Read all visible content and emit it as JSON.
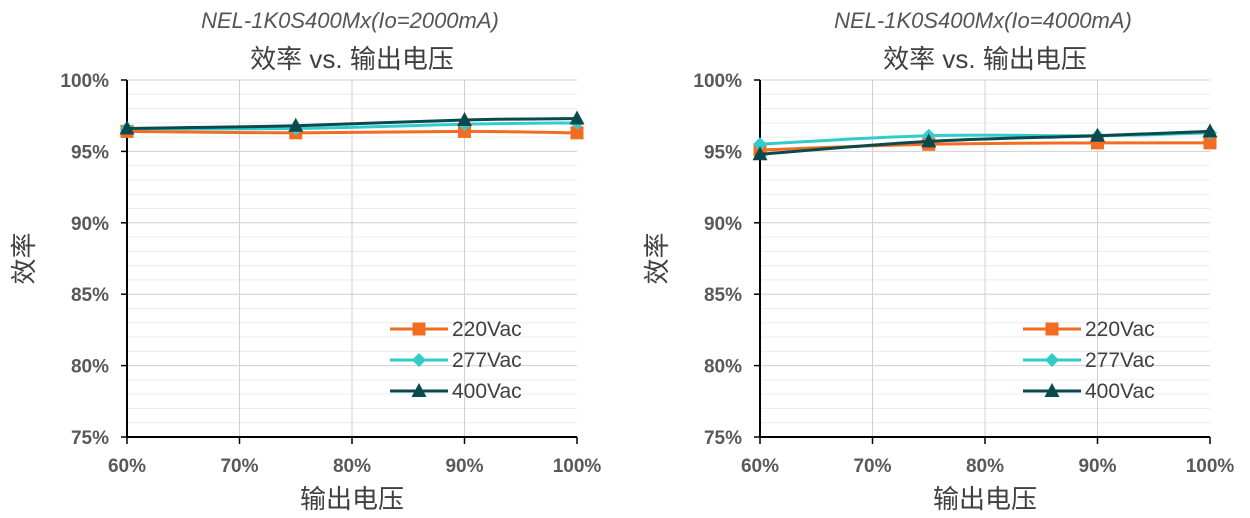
{
  "chart_data": [
    {
      "type": "line",
      "title": "NEL-1K0S400Mx(Io=2000mA)",
      "subtitle": "效率 vs. 输出电压",
      "xlabel": "输出电压",
      "ylabel": "效率",
      "x": [
        60,
        75,
        90,
        100
      ],
      "xticks": [
        "60%",
        "70%",
        "80%",
        "90%",
        "100%"
      ],
      "xlim": [
        60,
        100
      ],
      "yticks": [
        "75%",
        "80%",
        "85%",
        "90%",
        "95%",
        "100%"
      ],
      "ylim": [
        75,
        100
      ],
      "grid": true,
      "legend_position": "bottom-right",
      "series": [
        {
          "name": "220Vac",
          "values": [
            96.4,
            96.3,
            96.4,
            96.3
          ],
          "color": "#f26d21",
          "marker": "square"
        },
        {
          "name": "277Vac",
          "values": [
            96.6,
            96.6,
            96.9,
            97.0
          ],
          "color": "#33cccc",
          "marker": "diamond"
        },
        {
          "name": "400Vac",
          "values": [
            96.6,
            96.8,
            97.2,
            97.3
          ],
          "color": "#0a4a4f",
          "marker": "triangle"
        }
      ]
    },
    {
      "type": "line",
      "title": "NEL-1K0S400Mx(Io=4000mA)",
      "subtitle": "效率 vs. 输出电压",
      "xlabel": "输出电压",
      "ylabel": "效率",
      "x": [
        60,
        75,
        90,
        100
      ],
      "xticks": [
        "60%",
        "70%",
        "80%",
        "90%",
        "100%"
      ],
      "xlim": [
        60,
        100
      ],
      "yticks": [
        "75%",
        "80%",
        "85%",
        "90%",
        "95%",
        "100%"
      ],
      "ylim": [
        75,
        100
      ],
      "grid": true,
      "legend_position": "bottom-right",
      "series": [
        {
          "name": "220Vac",
          "values": [
            95.1,
            95.5,
            95.6,
            95.6
          ],
          "color": "#f26d21",
          "marker": "square"
        },
        {
          "name": "277Vac",
          "values": [
            95.5,
            96.1,
            96.1,
            96.3
          ],
          "color": "#33cccc",
          "marker": "diamond"
        },
        {
          "name": "400Vac",
          "values": [
            94.8,
            95.7,
            96.1,
            96.4
          ],
          "color": "#0a4a4f",
          "marker": "triangle"
        }
      ]
    }
  ]
}
